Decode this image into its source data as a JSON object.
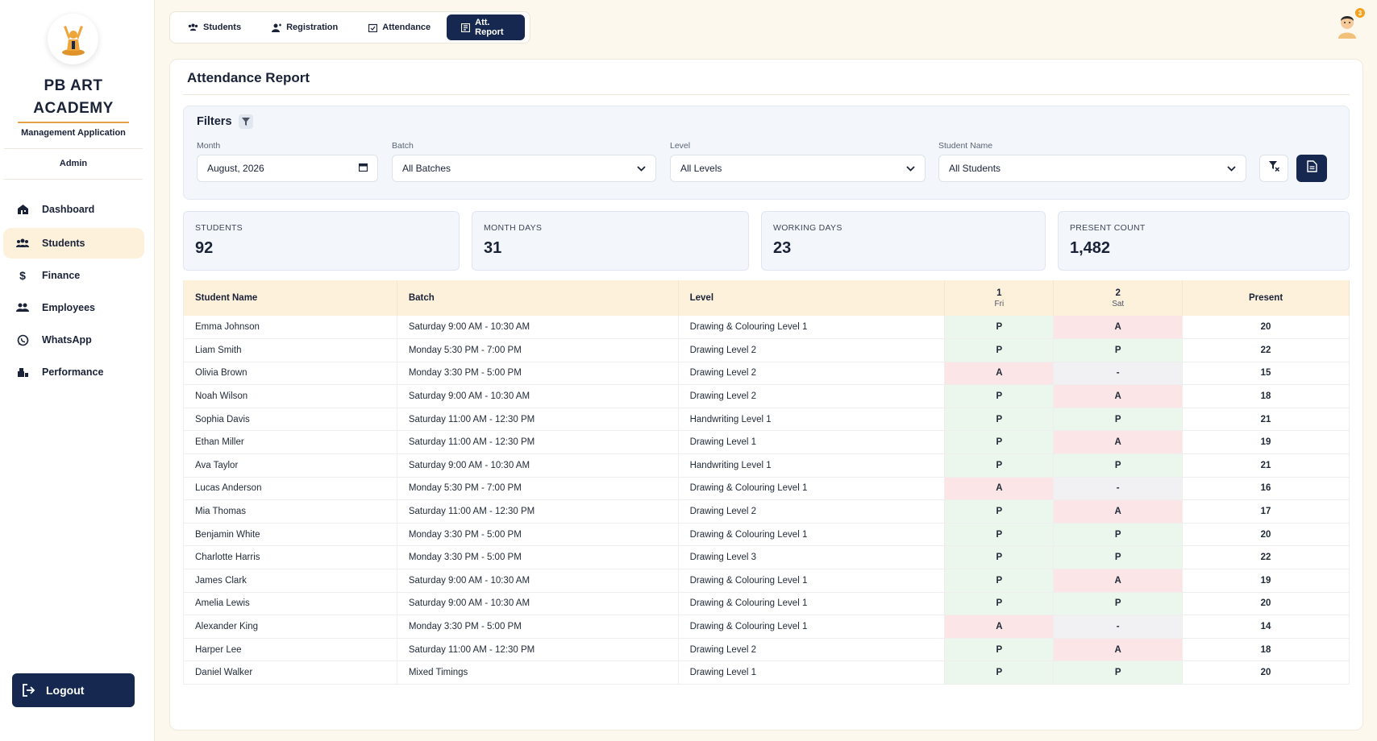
{
  "brand": {
    "line1": "PB ART",
    "line2": "ACADEMY",
    "subtitle": "Management Application",
    "role": "Admin"
  },
  "sidebar": {
    "items": [
      {
        "label": "Dashboard",
        "icon": "dashboard-icon",
        "active": false
      },
      {
        "label": "Students",
        "icon": "users-icon",
        "active": true
      },
      {
        "label": "Finance",
        "icon": "dollar-icon",
        "active": false
      },
      {
        "label": "Employees",
        "icon": "employees-icon",
        "active": false
      },
      {
        "label": "WhatsApp",
        "icon": "whatsapp-icon",
        "active": false
      },
      {
        "label": "Performance",
        "icon": "performance-icon",
        "active": false
      }
    ],
    "logout_label": "Logout"
  },
  "tabs": [
    {
      "label": "Students",
      "active": false
    },
    {
      "label": "Registration",
      "active": false
    },
    {
      "label": "Attendance",
      "active": false
    },
    {
      "label": "Att. Report",
      "active": true
    }
  ],
  "user": {
    "notification_count": "3"
  },
  "page": {
    "title": "Attendance Report"
  },
  "filters": {
    "title": "Filters",
    "month_label": "Month",
    "month_value": "August, 2026",
    "batch_label": "Batch",
    "batch_value": "All Batches",
    "level_label": "Level",
    "level_value": "All Levels",
    "student_label": "Student Name",
    "student_value": "All Students"
  },
  "stats": [
    {
      "label": "STUDENTS",
      "value": "92"
    },
    {
      "label": "MONTH DAYS",
      "value": "31"
    },
    {
      "label": "WORKING DAYS",
      "value": "23"
    },
    {
      "label": "PRESENT COUNT",
      "value": "1,482"
    }
  ],
  "table": {
    "headers": {
      "name": "Student Name",
      "batch": "Batch",
      "level": "Level",
      "day1": "1",
      "day1_w": "Fri",
      "day2": "2",
      "day2_w": "Sat",
      "present": "Present"
    },
    "rows": [
      {
        "name": "Emma Johnson",
        "batch": "Saturday 9:00 AM - 10:30 AM",
        "level": "Drawing & Colouring Level 1",
        "d1": "P",
        "d2": "A",
        "present": "20"
      },
      {
        "name": "Liam Smith",
        "batch": "Monday 5:30 PM - 7:00 PM",
        "level": "Drawing Level 2",
        "d1": "P",
        "d2": "P",
        "present": "22"
      },
      {
        "name": "Olivia Brown",
        "batch": "Monday 3:30 PM - 5:00 PM",
        "level": "Drawing Level 2",
        "d1": "A",
        "d2": "-",
        "present": "15"
      },
      {
        "name": "Noah Wilson",
        "batch": "Saturday 9:00 AM - 10:30 AM",
        "level": "Drawing Level 2",
        "d1": "P",
        "d2": "A",
        "present": "18"
      },
      {
        "name": "Sophia Davis",
        "batch": "Saturday 11:00 AM - 12:30 PM",
        "level": "Handwriting Level 1",
        "d1": "P",
        "d2": "P",
        "present": "21"
      },
      {
        "name": "Ethan Miller",
        "batch": "Saturday 11:00 AM - 12:30 PM",
        "level": "Drawing Level 1",
        "d1": "P",
        "d2": "A",
        "present": "19"
      },
      {
        "name": "Ava Taylor",
        "batch": "Saturday 9:00 AM - 10:30 AM",
        "level": "Handwriting Level 1",
        "d1": "P",
        "d2": "P",
        "present": "21"
      },
      {
        "name": "Lucas Anderson",
        "batch": "Monday 5:30 PM - 7:00 PM",
        "level": "Drawing & Colouring Level 1",
        "d1": "A",
        "d2": "-",
        "present": "16"
      },
      {
        "name": "Mia Thomas",
        "batch": "Saturday 11:00 AM - 12:30 PM",
        "level": "Drawing Level 2",
        "d1": "P",
        "d2": "A",
        "present": "17"
      },
      {
        "name": "Benjamin White",
        "batch": "Monday 3:30 PM - 5:00 PM",
        "level": "Drawing & Colouring Level 1",
        "d1": "P",
        "d2": "P",
        "present": "20"
      },
      {
        "name": "Charlotte Harris",
        "batch": "Monday 3:30 PM - 5:00 PM",
        "level": "Drawing Level 3",
        "d1": "P",
        "d2": "P",
        "present": "22"
      },
      {
        "name": "James Clark",
        "batch": "Saturday 9:00 AM - 10:30 AM",
        "level": "Drawing & Colouring Level 1",
        "d1": "P",
        "d2": "A",
        "present": "19"
      },
      {
        "name": "Amelia Lewis",
        "batch": "Saturday 9:00 AM - 10:30 AM",
        "level": "Drawing & Colouring Level 1",
        "d1": "P",
        "d2": "P",
        "present": "20"
      },
      {
        "name": "Alexander King",
        "batch": "Monday 3:30 PM - 5:00 PM",
        "level": "Drawing & Colouring Level 1",
        "d1": "A",
        "d2": "-",
        "present": "14"
      },
      {
        "name": "Harper Lee",
        "batch": "Saturday 11:00 AM - 12:30 PM",
        "level": "Drawing Level 2",
        "d1": "P",
        "d2": "A",
        "present": "18"
      },
      {
        "name": "Daniel Walker",
        "batch": "Mixed Timings",
        "level": "Drawing Level 1",
        "d1": "P",
        "d2": "P",
        "present": "20"
      }
    ]
  },
  "colors": {
    "navy": "#16284f",
    "accent": "#e4a14a",
    "present_bg": "#ebf6ec",
    "absent_bg": "#fbe5e6"
  }
}
